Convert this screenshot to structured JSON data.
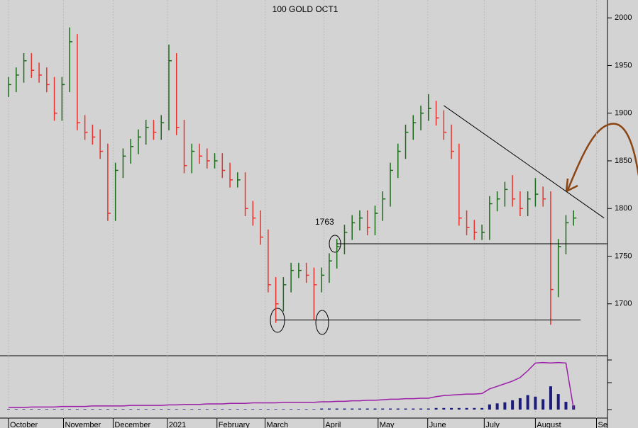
{
  "chart_data": {
    "type": "ohlc",
    "title": "100 GOLD OCT1",
    "up_color": "#1a6b1a",
    "down_color": "#e8322b",
    "ylim": [
      1650,
      2018
    ],
    "yticks": [
      1700,
      1750,
      1800,
      1850,
      1900,
      1950,
      2000
    ],
    "xlim": [
      -0.3,
      80.3
    ],
    "xticks": [
      {
        "value": 0,
        "label": "October"
      },
      {
        "value": 7.2,
        "label": "November"
      },
      {
        "value": 13.7,
        "label": "December"
      },
      {
        "value": 20.8,
        "label": "2021"
      },
      {
        "value": 27.3,
        "label": "February"
      },
      {
        "value": 33.6,
        "label": "March"
      },
      {
        "value": 41.3,
        "label": "April"
      },
      {
        "value": 48.4,
        "label": "May"
      },
      {
        "value": 54.9,
        "label": "June"
      },
      {
        "value": 62.3,
        "label": "July"
      },
      {
        "value": 69,
        "label": "August"
      },
      {
        "value": 77,
        "label": "Se"
      }
    ],
    "close": [
      1930,
      1940,
      1955,
      1945,
      1940,
      1930,
      1900,
      1930,
      1975,
      1890,
      1880,
      1875,
      1860,
      1795,
      1840,
      1855,
      1865,
      1875,
      1885,
      1880,
      1890,
      1955,
      1885,
      1845,
      1860,
      1855,
      1850,
      1850,
      1840,
      1830,
      1830,
      1800,
      1790,
      1770,
      1720,
      1700,
      1720,
      1735,
      1735,
      1730,
      1720,
      1730,
      1745,
      1760,
      1775,
      1785,
      1790,
      1780,
      1795,
      1810,
      1840,
      1860,
      1880,
      1890,
      1900,
      1905,
      1895,
      1880,
      1860,
      1790,
      1780,
      1775,
      1775,
      1805,
      1810,
      1820,
      1810,
      1800,
      1810,
      1815,
      1810,
      1715,
      1760,
      1785,
      1790
    ],
    "high": [
      1938,
      1948,
      1963,
      1963,
      1953,
      1948,
      1938,
      1938,
      1990,
      1983,
      1898,
      1888,
      1883,
      1868,
      1848,
      1863,
      1873,
      1883,
      1893,
      1893,
      1898,
      1972,
      1963,
      1893,
      1868,
      1868,
      1863,
      1858,
      1858,
      1848,
      1838,
      1838,
      1808,
      1798,
      1778,
      1728,
      1728,
      1743,
      1743,
      1743,
      1738,
      1738,
      1753,
      1768,
      1783,
      1793,
      1798,
      1798,
      1803,
      1818,
      1848,
      1868,
      1888,
      1898,
      1908,
      1920,
      1913,
      1903,
      1888,
      1868,
      1798,
      1788,
      1783,
      1813,
      1818,
      1828,
      1835,
      1818,
      1818,
      1832,
      1823,
      1818,
      1768,
      1793,
      1798
    ],
    "low": [
      1917,
      1922,
      1932,
      1937,
      1932,
      1922,
      1892,
      1892,
      1922,
      1882,
      1872,
      1867,
      1852,
      1787,
      1787,
      1832,
      1847,
      1857,
      1867,
      1872,
      1872,
      1882,
      1877,
      1837,
      1837,
      1847,
      1842,
      1842,
      1832,
      1822,
      1822,
      1792,
      1782,
      1762,
      1712,
      1680,
      1692,
      1712,
      1727,
      1722,
      1683,
      1712,
      1722,
      1737,
      1752,
      1767,
      1777,
      1772,
      1772,
      1787,
      1802,
      1832,
      1852,
      1872,
      1882,
      1892,
      1887,
      1872,
      1852,
      1782,
      1772,
      1767,
      1767,
      1767,
      1797,
      1802,
      1802,
      1792,
      1792,
      1802,
      1802,
      1678,
      1707,
      1752,
      1782
    ],
    "lower_ylim": [
      0,
      100
    ],
    "volume": [
      1,
      1,
      1,
      1,
      1,
      1,
      1,
      1,
      1,
      1,
      1,
      1,
      1,
      1,
      1,
      1,
      1,
      1,
      1,
      1,
      1,
      1,
      1,
      1,
      1,
      1,
      1,
      1,
      1,
      1,
      1,
      1,
      1,
      1,
      1,
      1,
      1,
      1,
      1,
      1,
      1,
      2,
      2,
      2,
      2,
      2,
      2,
      2,
      2,
      2,
      2,
      2,
      2,
      2,
      2,
      2,
      3,
      3,
      3,
      3,
      3,
      3,
      3,
      10,
      12,
      14,
      18,
      22,
      28,
      25,
      20,
      45,
      30,
      15,
      8
    ],
    "volume_color": "#1c1c7a",
    "open_interest": [
      4,
      4,
      4,
      5,
      5,
      5,
      5,
      6,
      6,
      6,
      6,
      7,
      7,
      7,
      7,
      7,
      8,
      8,
      8,
      8,
      8,
      9,
      9,
      10,
      10,
      10,
      11,
      11,
      11,
      12,
      12,
      12,
      13,
      13,
      13,
      13,
      14,
      14,
      14,
      14,
      14,
      15,
      15,
      16,
      16,
      17,
      17,
      18,
      18,
      19,
      20,
      20,
      21,
      21,
      22,
      22,
      25,
      27,
      28,
      29,
      30,
      30,
      31,
      40,
      45,
      50,
      55,
      62,
      75,
      90,
      91,
      90,
      91,
      90,
      2
    ],
    "oi_color": "#9b1fa8",
    "annotation": "1763",
    "hlines": [
      {
        "from": 43,
        "value": 1763
      },
      {
        "from": 35,
        "value": 1683
      }
    ],
    "trendline": {
      "from": [
        57,
        1908
      ],
      "to": [
        78,
        1790
      ]
    }
  }
}
